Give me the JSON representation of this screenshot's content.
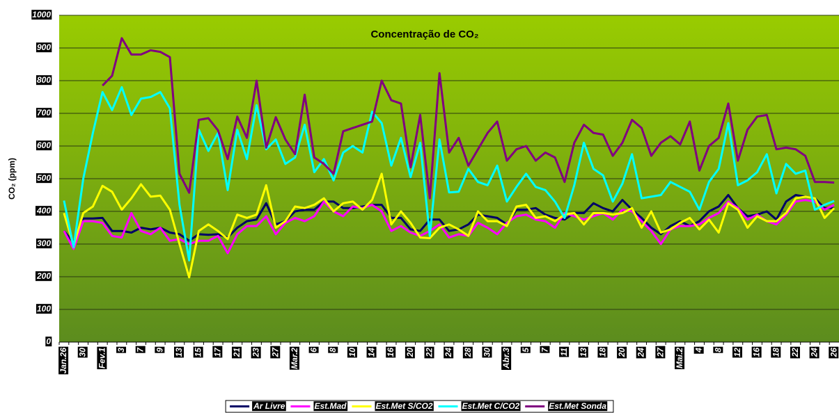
{
  "chart_data": {
    "type": "line",
    "title": "Concentração de CO₂",
    "y_label": "CO₂ (ppm)",
    "categories": [
      "Jan.26",
      null,
      "30",
      null,
      "Fev.1",
      null,
      "3",
      null,
      "7",
      null,
      "9",
      null,
      "13",
      null,
      "15",
      null,
      "17",
      null,
      "21",
      null,
      "23",
      null,
      "27",
      null,
      "Mar.2",
      null,
      "6",
      null,
      "8",
      null,
      "10",
      null,
      "14",
      null,
      "16",
      null,
      "20",
      null,
      "22",
      null,
      "24",
      null,
      "28",
      null,
      "30",
      null,
      "Abr.3",
      null,
      "5",
      null,
      "7",
      null,
      "11",
      null,
      "13",
      null,
      "18",
      null,
      "20",
      null,
      "24",
      null,
      "27",
      null,
      "Mai.2",
      null,
      "4",
      null,
      "8",
      null,
      "12",
      null,
      "16",
      null,
      "18",
      null,
      "22",
      null,
      "24",
      null,
      "26"
    ],
    "ylim": [
      0,
      1000
    ],
    "yticks": [
      0,
      100,
      200,
      300,
      400,
      500,
      600,
      700,
      800,
      900,
      1000
    ],
    "grid": true,
    "legend": "bottom",
    "series": [
      {
        "name": "Ar Livre",
        "color": "#000066",
        "values": [
          340,
          305,
          378,
          378,
          380,
          340,
          340,
          335,
          350,
          345,
          350,
          335,
          330,
          310,
          330,
          328,
          330,
          320,
          350,
          370,
          375,
          425,
          360,
          370,
          400,
          405,
          405,
          430,
          430,
          410,
          410,
          415,
          420,
          420,
          380,
          380,
          345,
          340,
          375,
          375,
          340,
          345,
          360,
          390,
          385,
          380,
          360,
          405,
          405,
          410,
          390,
          380,
          375,
          395,
          395,
          425,
          410,
          400,
          435,
          405,
          380,
          350,
          330,
          355,
          370,
          355,
          370,
          400,
          415,
          450,
          410,
          385,
          390,
          400,
          375,
          430,
          450,
          445,
          440,
          410,
          410
        ]
      },
      {
        "name": "Est.Mad",
        "color": "#ff00ff",
        "values": [
          340,
          285,
          370,
          370,
          365,
          325,
          320,
          395,
          340,
          330,
          350,
          310,
          315,
          300,
          310,
          310,
          325,
          272,
          330,
          355,
          355,
          385,
          330,
          365,
          380,
          370,
          385,
          430,
          400,
          385,
          415,
          410,
          420,
          400,
          340,
          355,
          335,
          325,
          340,
          360,
          320,
          330,
          325,
          365,
          350,
          330,
          365,
          385,
          390,
          375,
          370,
          350,
          395,
          385,
          375,
          385,
          395,
          375,
          405,
          400,
          370,
          340,
          300,
          345,
          355,
          355,
          360,
          380,
          395,
          430,
          410,
          375,
          390,
          370,
          360,
          390,
          430,
          435,
          430,
          405,
          420
        ]
      },
      {
        "name": "Est.Met S/CO2",
        "color": "#ffff00",
        "values": [
          395,
          295,
          395,
          415,
          478,
          460,
          405,
          440,
          483,
          445,
          448,
          405,
          300,
          198,
          340,
          360,
          340,
          315,
          390,
          380,
          390,
          480,
          350,
          370,
          415,
          410,
          420,
          440,
          400,
          425,
          430,
          405,
          435,
          515,
          360,
          400,
          365,
          320,
          318,
          350,
          360,
          345,
          325,
          400,
          370,
          370,
          355,
          415,
          420,
          380,
          385,
          370,
          390,
          395,
          360,
          395,
          395,
          390,
          395,
          410,
          350,
          400,
          335,
          345,
          365,
          380,
          345,
          375,
          335,
          425,
          405,
          350,
          385,
          370,
          370,
          395,
          440,
          445,
          440,
          380,
          410
        ]
      },
      {
        "name": "Est.Met C/CO2",
        "color": "#00ffff",
        "values": [
          433,
          290,
          500,
          640,
          765,
          710,
          780,
          695,
          745,
          750,
          765,
          715,
          420,
          250,
          650,
          585,
          640,
          465,
          650,
          560,
          725,
          590,
          620,
          545,
          565,
          665,
          520,
          560,
          495,
          580,
          600,
          580,
          705,
          670,
          540,
          625,
          505,
          610,
          325,
          620,
          458,
          460,
          530,
          490,
          480,
          540,
          430,
          475,
          515,
          475,
          465,
          430,
          380,
          480,
          610,
          530,
          510,
          430,
          485,
          575,
          440,
          445,
          450,
          490,
          475,
          460,
          405,
          490,
          530,
          670,
          480,
          495,
          520,
          575,
          455,
          545,
          515,
          525,
          405,
          420,
          432
        ]
      },
      {
        "name": "Est.Met Sonda",
        "color": "#800080",
        "values": [
          null,
          null,
          null,
          null,
          785,
          815,
          930,
          880,
          880,
          893,
          888,
          872,
          515,
          457,
          680,
          685,
          648,
          560,
          690,
          625,
          800,
          595,
          688,
          620,
          575,
          757,
          565,
          545,
          515,
          645,
          655,
          665,
          675,
          800,
          740,
          730,
          535,
          695,
          440,
          823,
          580,
          625,
          540,
          590,
          640,
          675,
          555,
          590,
          600,
          555,
          580,
          565,
          490,
          610,
          665,
          640,
          635,
          570,
          610,
          680,
          655,
          570,
          610,
          630,
          605,
          675,
          525,
          600,
          625,
          730,
          555,
          650,
          690,
          695,
          590,
          595,
          590,
          570,
          490,
          490,
          488
        ]
      }
    ]
  }
}
